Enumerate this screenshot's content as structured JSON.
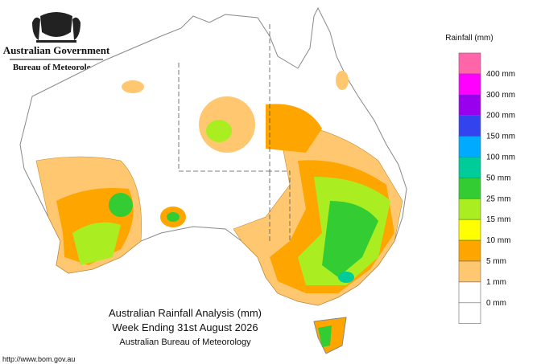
{
  "header": {
    "government": "Australian Government",
    "agency": "Bureau of Meteorology"
  },
  "legend": {
    "title": "Rainfall (mm)",
    "top_color": "#ff66aa",
    "items": [
      {
        "label": "400 mm",
        "color": "#ff00ff"
      },
      {
        "label": "300 mm",
        "color": "#9900ee"
      },
      {
        "label": "200 mm",
        "color": "#3344ee"
      },
      {
        "label": "150 mm",
        "color": "#00aaff"
      },
      {
        "label": "100 mm",
        "color": "#00cc99"
      },
      {
        "label": "50 mm",
        "color": "#33cc33"
      },
      {
        "label": "25 mm",
        "color": "#aaee22"
      },
      {
        "label": "15 mm",
        "color": "#ffff00"
      },
      {
        "label": "10 mm",
        "color": "#ffa500"
      },
      {
        "label": "5 mm",
        "color": "#ffc870"
      },
      {
        "label": "1 mm",
        "color": "#ffffff"
      },
      {
        "label": "0 mm",
        "color": "#ffffff"
      }
    ]
  },
  "caption": {
    "title": "Australian Rainfall Analysis (mm)",
    "period": "Week Ending 31st August 2026",
    "source": "Australian Bureau of Meteorology"
  },
  "url": "http://www.bom.gov.au"
}
